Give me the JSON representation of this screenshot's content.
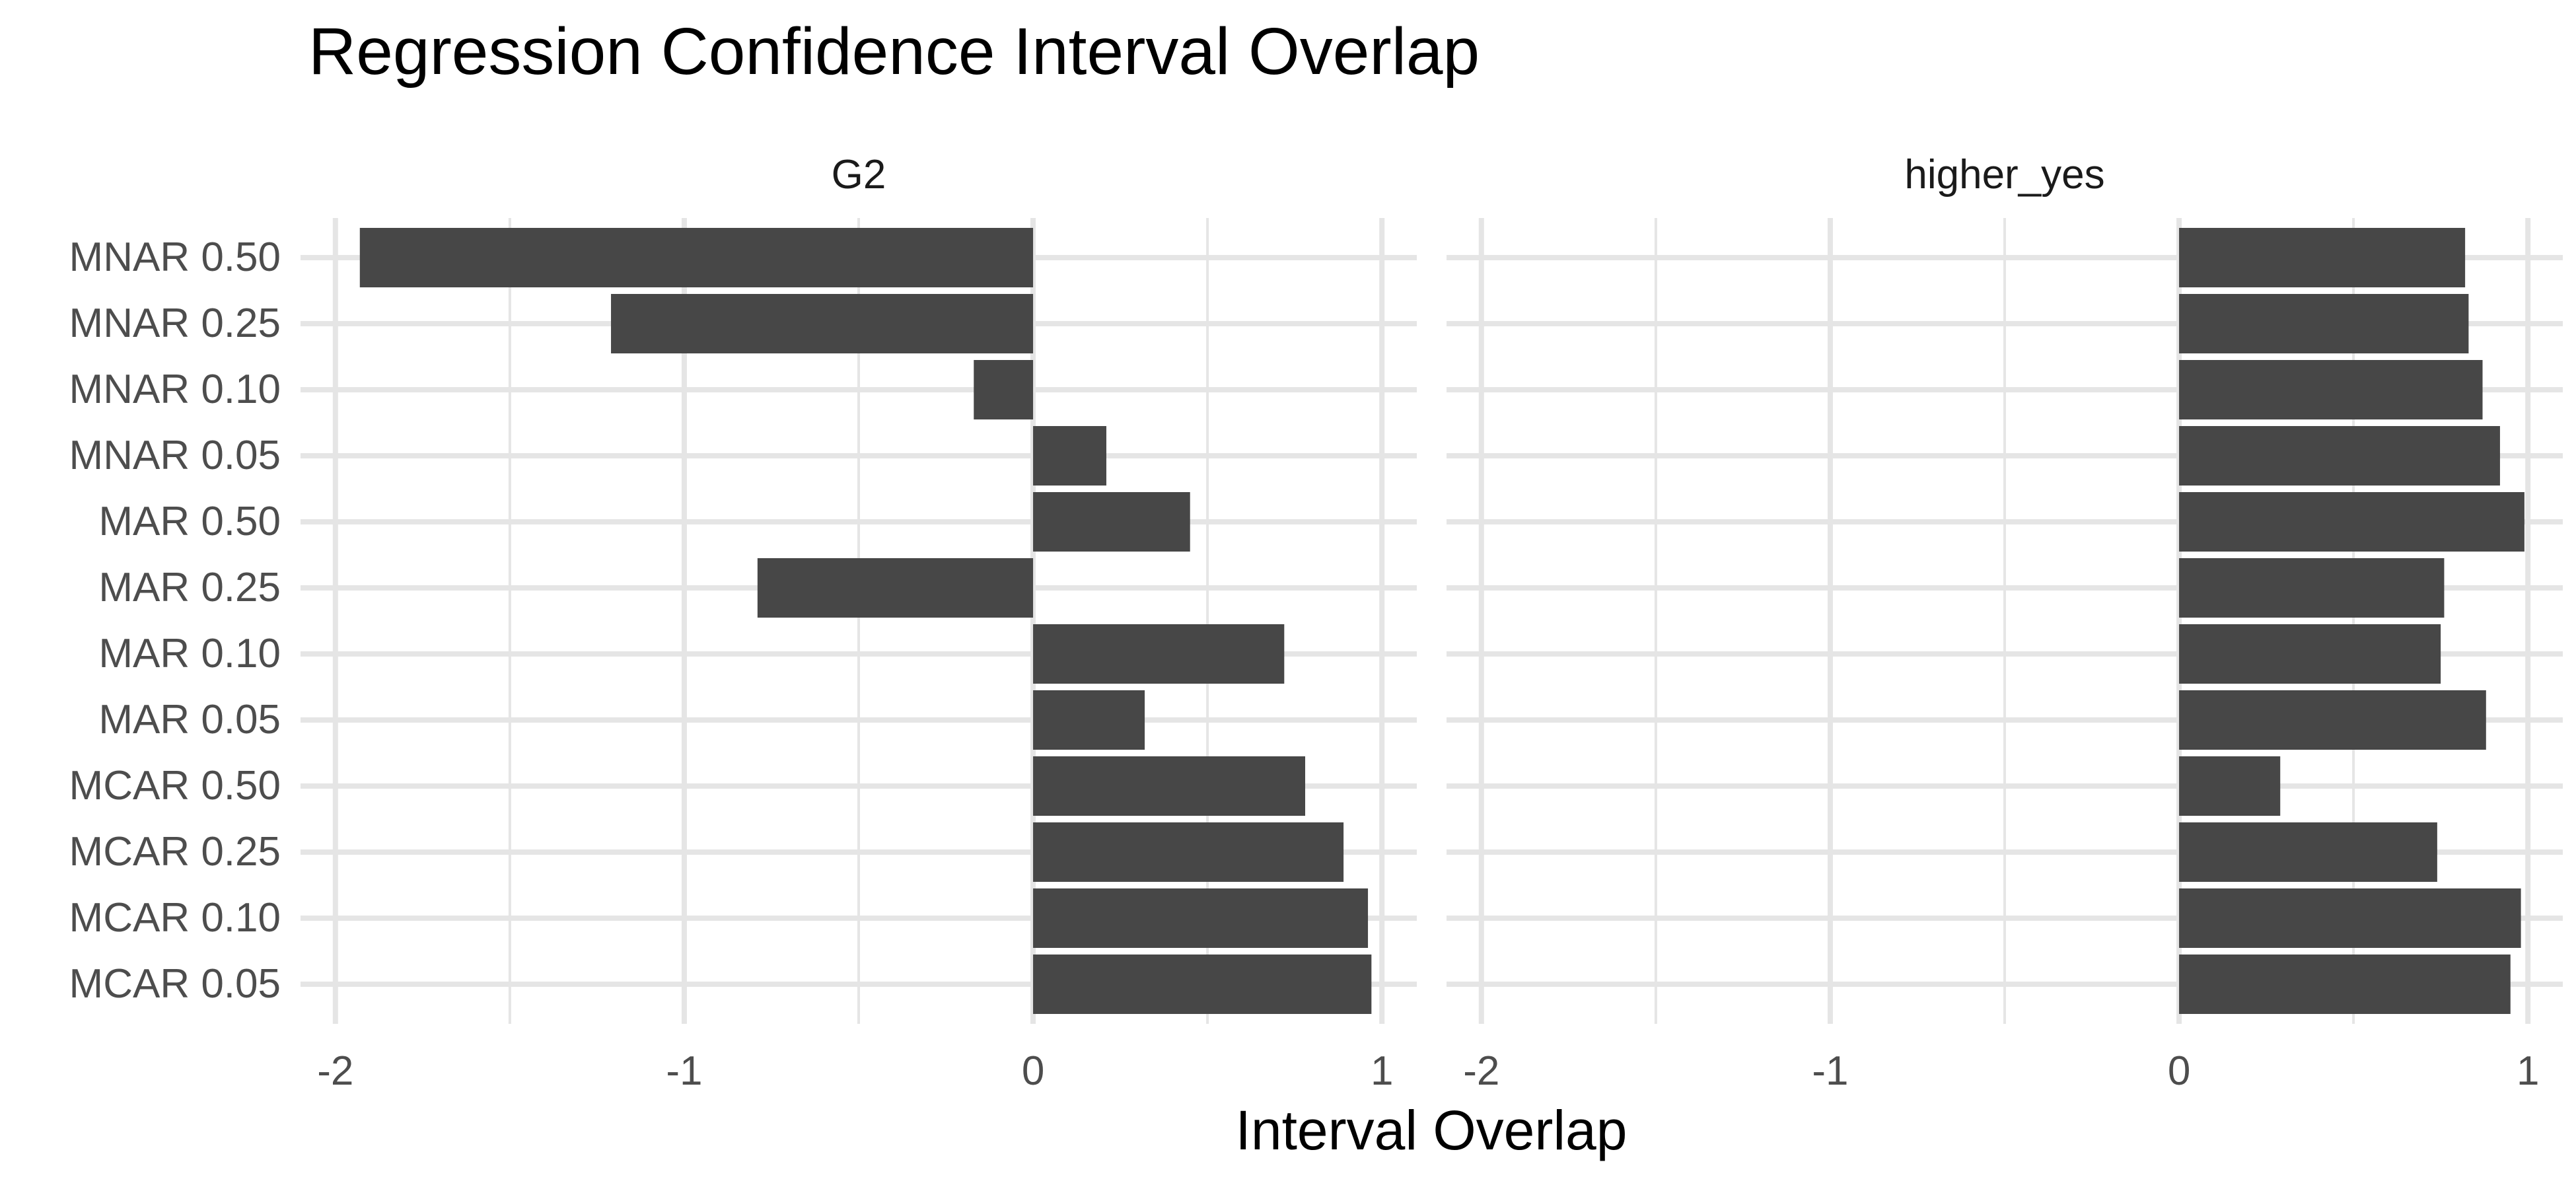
{
  "chart_data": {
    "type": "bar",
    "orientation": "horizontal",
    "title": "Regression Confidence Interval Overlap",
    "xlabel": "Interval Overlap",
    "ylabel": "",
    "xlim": [
      -2.1,
      1.1
    ],
    "xticks": [
      -2,
      -1,
      0,
      1
    ],
    "xtick_labels": [
      "-2",
      "-1",
      "0",
      "1"
    ],
    "grid": true,
    "legend": "none",
    "colors": {
      "bar": "#474747",
      "grid": "#e5e5e5",
      "text": "#1a1a1a",
      "axis_text": "#4d4d4d"
    },
    "categories": [
      "MNAR 0.50",
      "MNAR 0.25",
      "MNAR 0.10",
      "MNAR 0.05",
      "MAR 0.50",
      "MAR 0.25",
      "MAR 0.10",
      "MAR 0.05",
      "MCAR 0.50",
      "MCAR 0.25",
      "MCAR 0.10",
      "MCAR 0.05"
    ],
    "panels": [
      {
        "name": "G2",
        "values": [
          -1.93,
          -1.21,
          -0.17,
          0.21,
          0.45,
          -0.79,
          0.72,
          0.32,
          0.78,
          0.89,
          0.96,
          0.97
        ]
      },
      {
        "name": "higher_yes",
        "values": [
          0.82,
          0.83,
          0.87,
          0.92,
          0.99,
          0.76,
          0.75,
          0.88,
          0.29,
          0.74,
          0.98,
          0.95
        ]
      }
    ]
  }
}
